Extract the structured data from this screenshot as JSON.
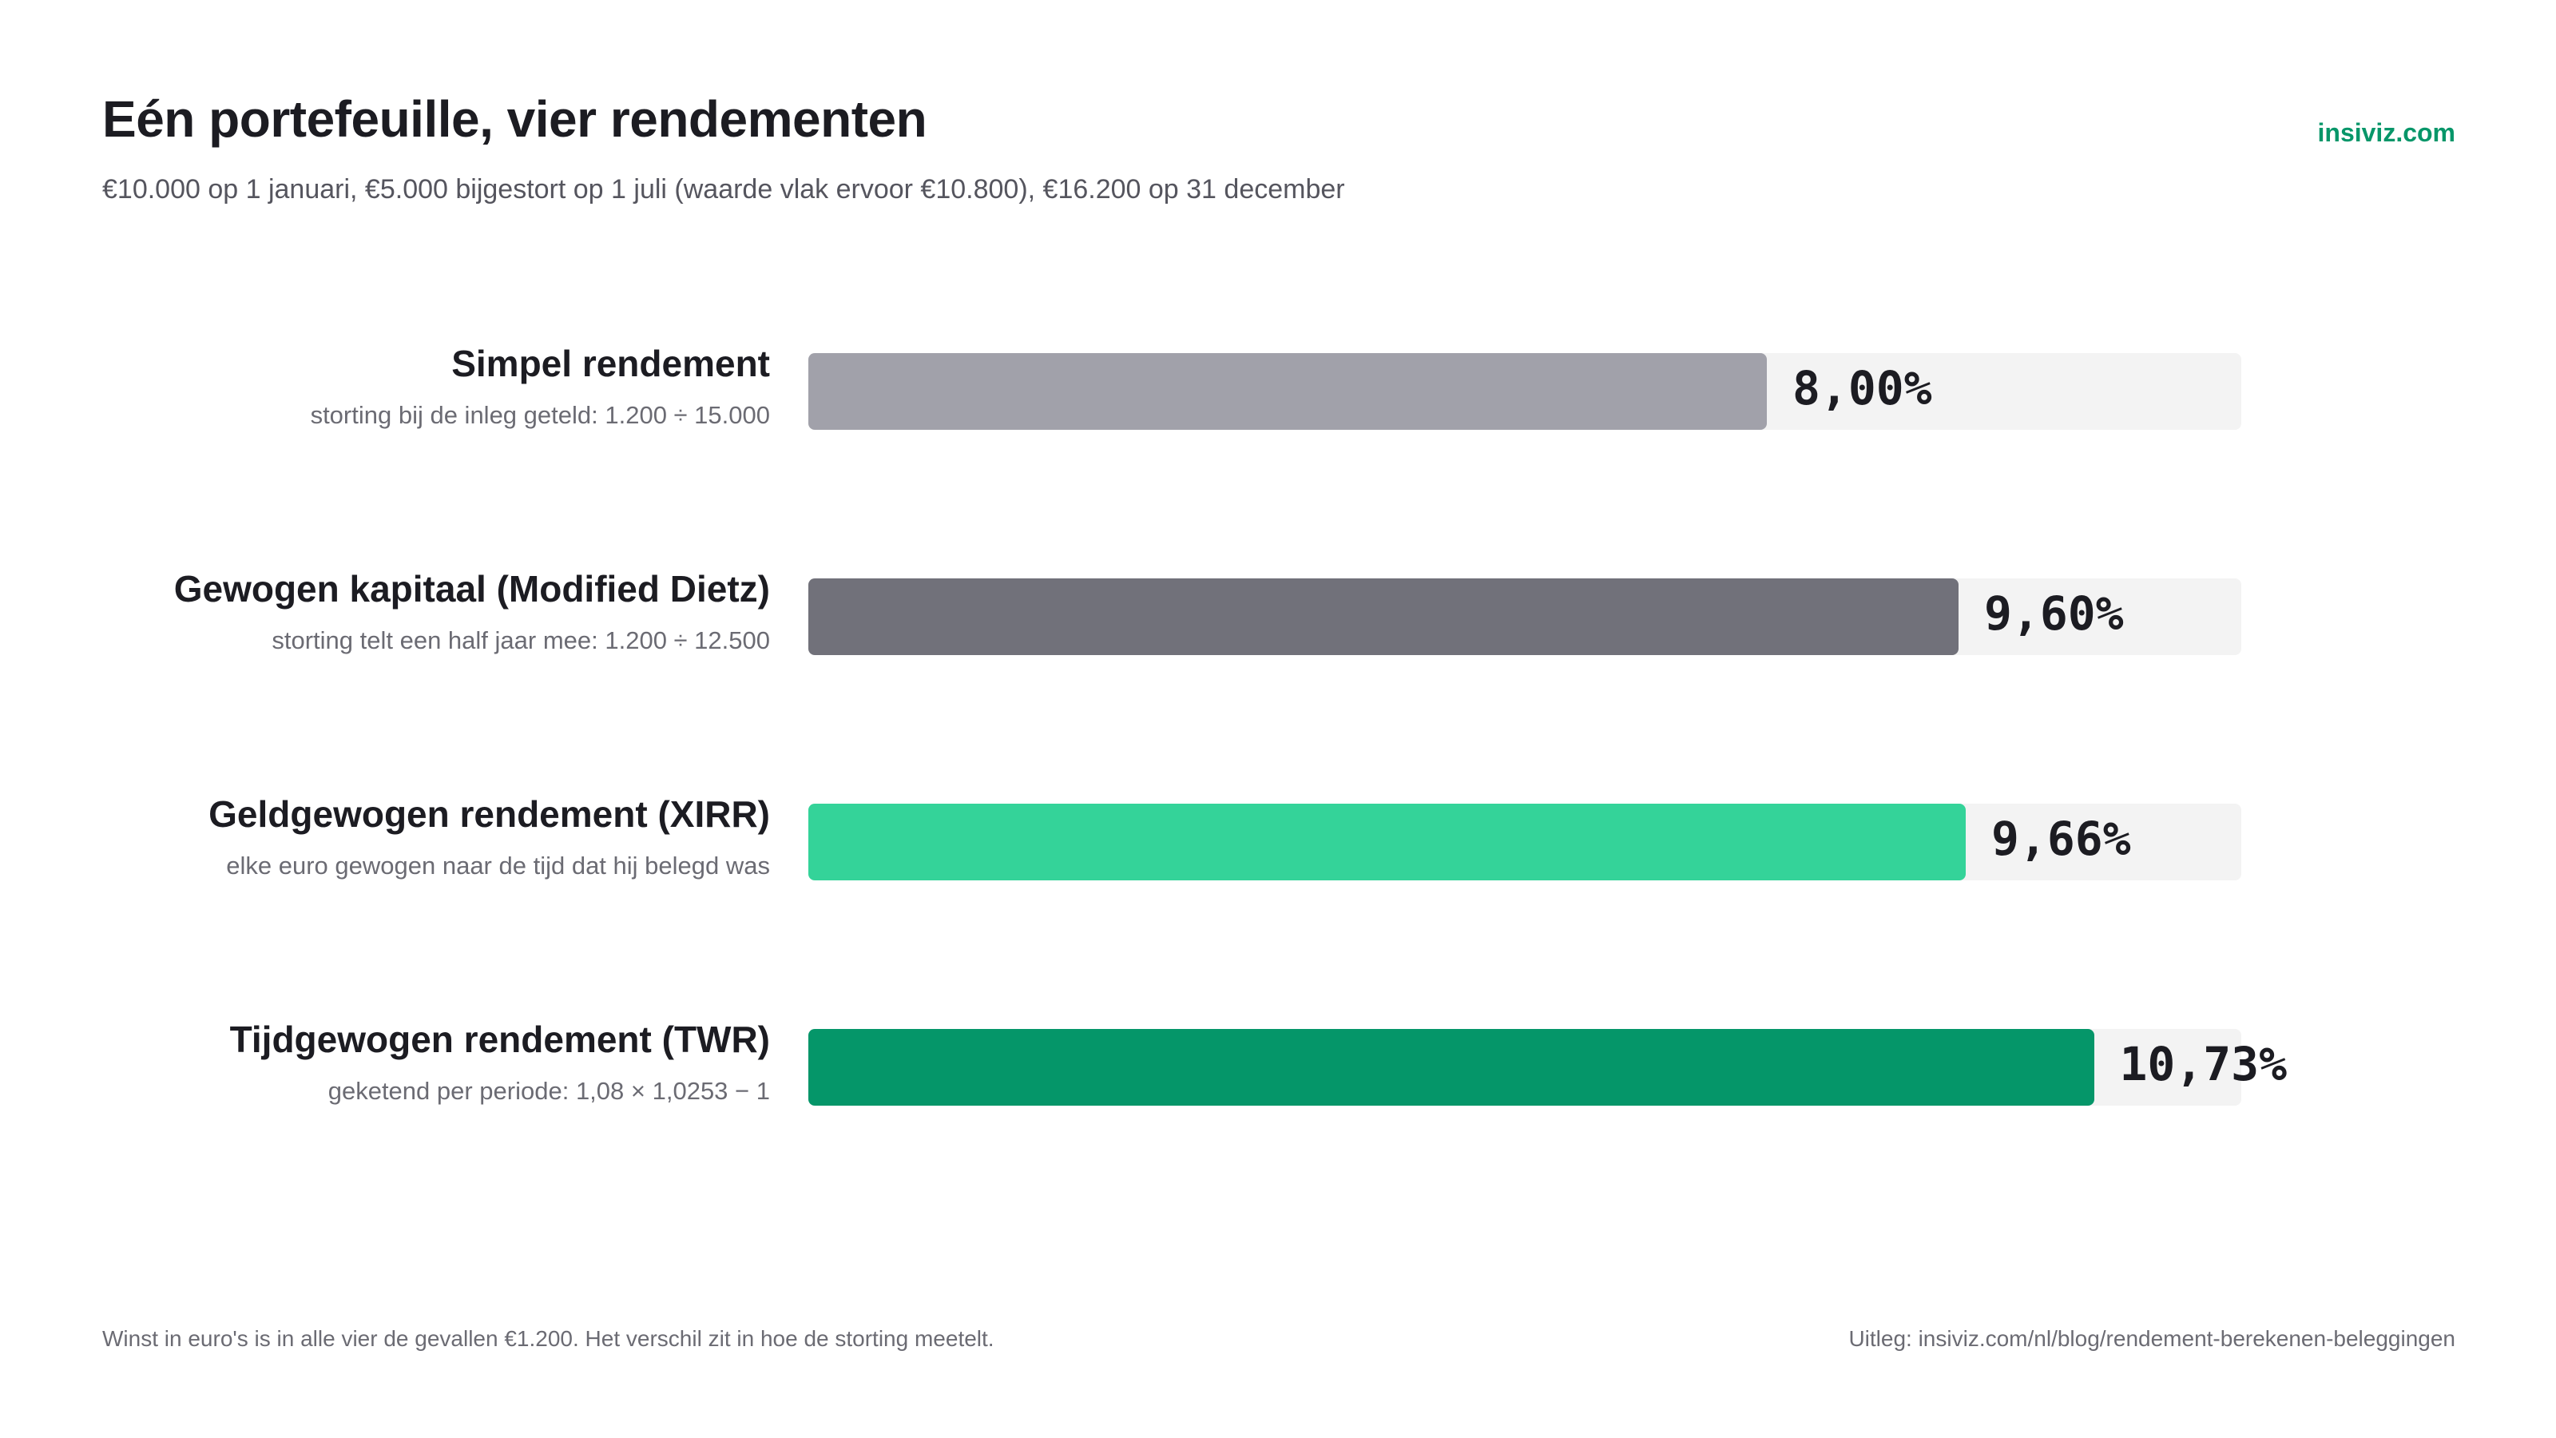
{
  "header": {
    "title": "Eén portefeuille, vier rendementen",
    "subtitle": "€10.000 op 1 januari, €5.000 bijgestort op 1 juli (waarde vlak ervoor €10.800), €16.200 op 31 december",
    "brand": "insiviz.com"
  },
  "footer": {
    "note": "Winst in euro's is in alle vier de gevallen €1.200. Het verschil zit in hoe de storting meetelt.",
    "source": "Uitleg: insiviz.com/nl/blog/rendement-berekenen-beleggingen"
  },
  "colors": {
    "simple": "#a1a1aa",
    "dietz": "#71717a",
    "xirr": "#34d399",
    "twr": "#059669",
    "track": "#f3f3f3",
    "brand": "#079669"
  },
  "chart_data": {
    "type": "bar",
    "orientation": "horizontal",
    "xlim": [
      0,
      12
    ],
    "categories": [
      "Simpel rendement",
      "Gewogen kapitaal (Modified Dietz)",
      "Geldgewogen rendement (XIRR)",
      "Tijdgewogen rendement (TWR)"
    ],
    "descriptions": [
      "storting bij de inleg geteld: 1.200 ÷ 15.000",
      "storting telt een half jaar mee: 1.200 ÷ 12.500",
      "elke euro gewogen naar de tijd dat hij belegd was",
      "geketend per periode: 1,08 × 1,0253 − 1"
    ],
    "values": [
      8.0,
      9.6,
      9.66,
      10.73
    ],
    "value_labels": [
      "8,00%",
      "9,60%",
      "9,66%",
      "10,73%"
    ],
    "bar_colors": [
      "#a1a1aa",
      "#71717a",
      "#34d399",
      "#059669"
    ]
  }
}
